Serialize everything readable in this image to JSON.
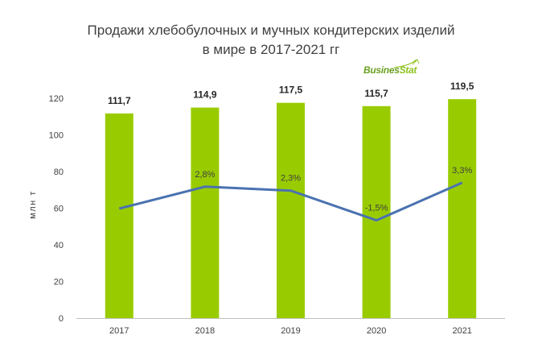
{
  "title_lines": [
    "Продажи хлебобулочных и мучных кондитерских изделий",
    "в мире в 2017-2021 гг"
  ],
  "logo": {
    "part1": "Busines",
    "part2": "Stat"
  },
  "colors": {
    "bar": "#99cc00",
    "line": "#4a72b0",
    "axis": "#bfbfbf",
    "text": "#404040"
  },
  "chart_data": {
    "type": "bar",
    "categories": [
      "2017",
      "2018",
      "2019",
      "2020",
      "2021"
    ],
    "series": [
      {
        "type": "bar",
        "values": [
          111.7,
          114.9,
          117.5,
          115.7,
          119.5
        ],
        "labels": [
          "111,7",
          "114,9",
          "117,5",
          "115,7",
          "119,5"
        ]
      },
      {
        "type": "line",
        "values": [
          null,
          2.8,
          2.3,
          -1.5,
          3.3
        ],
        "labels": [
          "",
          "2,8%",
          "2,3%",
          "-1,5%",
          "3,3%"
        ]
      }
    ],
    "ylabel": "млн т",
    "ylim": [
      0,
      120
    ],
    "yticks": [
      0,
      20,
      40,
      60,
      80,
      100,
      120
    ],
    "grid": false,
    "legend": "none"
  }
}
